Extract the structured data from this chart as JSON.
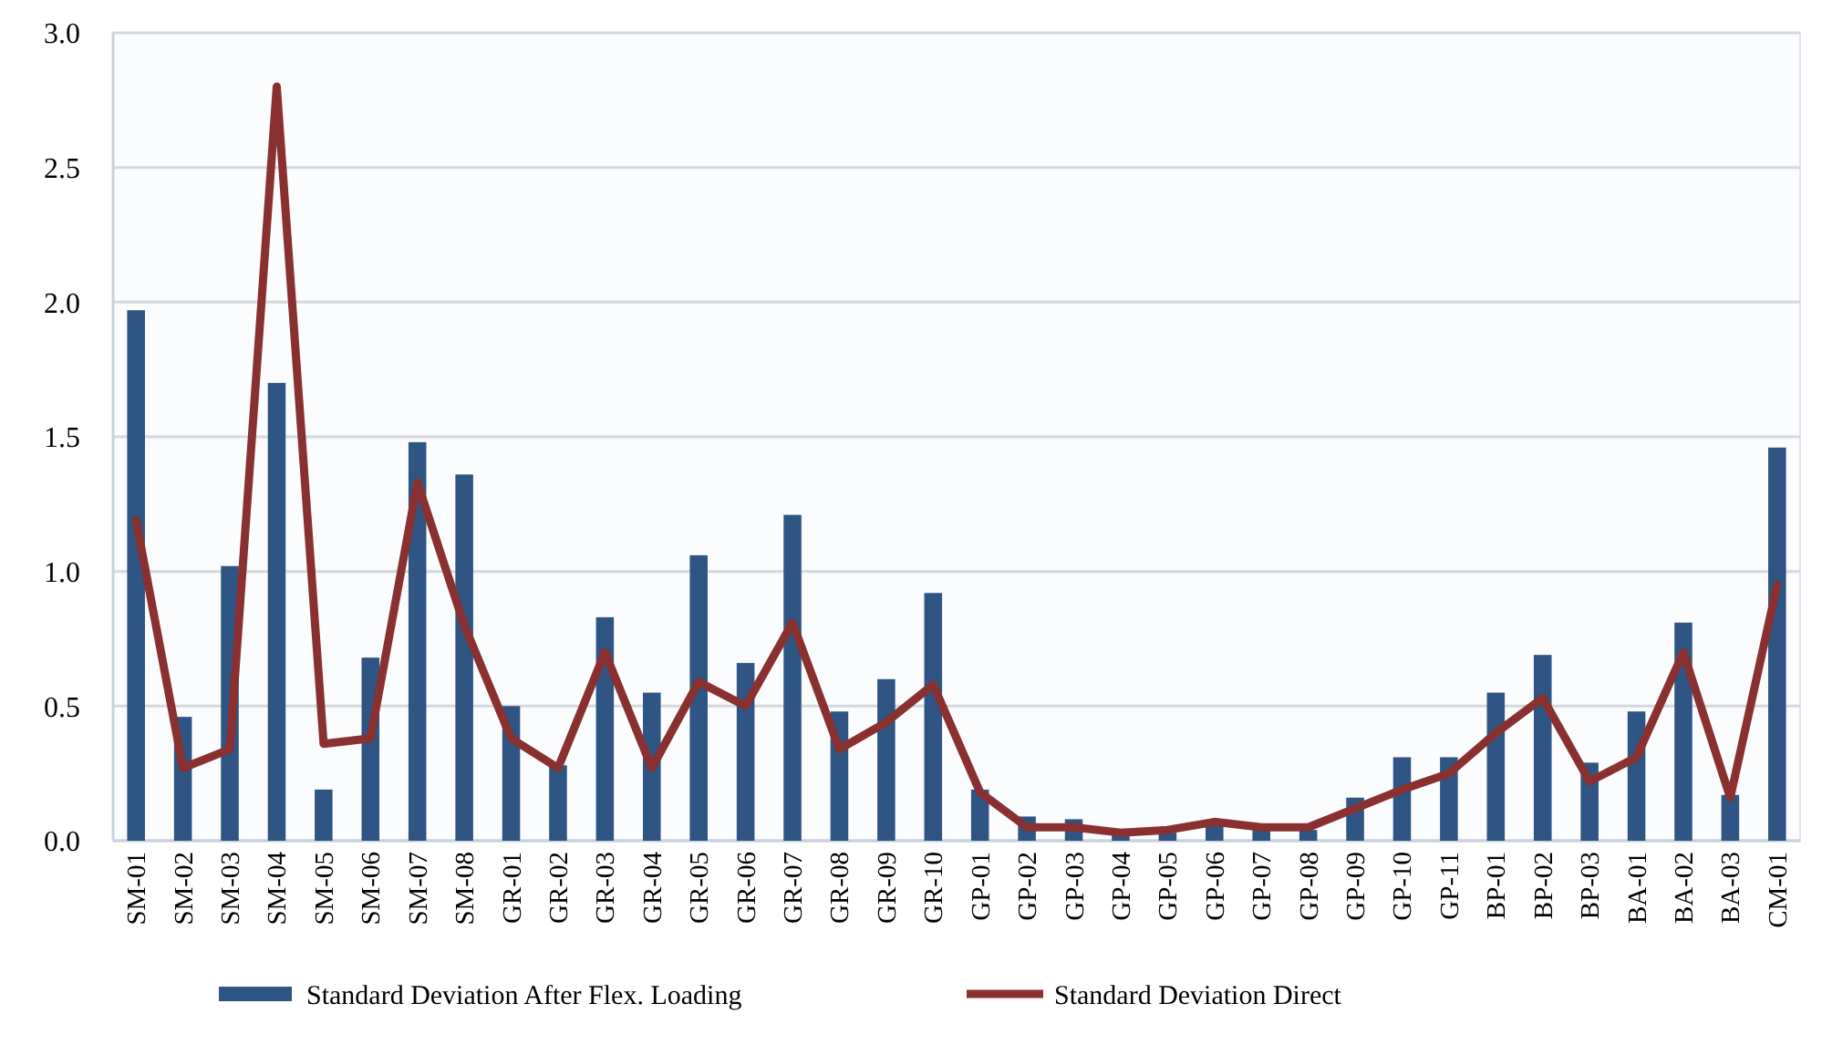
{
  "chart_data": {
    "type": "bar",
    "categories": [
      "SM-01",
      "SM-02",
      "SM-03",
      "SM-04",
      "SM-05",
      "SM-06",
      "SM-07",
      "SM-08",
      "GR-01",
      "GR-02",
      "GR-03",
      "GR-04",
      "GR-05",
      "GR-06",
      "GR-07",
      "GR-08",
      "GR-09",
      "GR-10",
      "GP-01",
      "GP-02",
      "GP-03",
      "GP-04",
      "GP-05",
      "GP-06",
      "GP-07",
      "GP-08",
      "GP-09",
      "GP-10",
      "GP-11",
      "BP-01",
      "BP-02",
      "BP-03",
      "BA-01",
      "BA-02",
      "BA-03",
      "CM-01"
    ],
    "series": [
      {
        "name": "Standard Deviation After Flex. Loading",
        "color": "#2e5583",
        "values": [
          1.97,
          0.46,
          1.02,
          1.7,
          0.19,
          0.68,
          1.48,
          1.36,
          0.5,
          0.28,
          0.83,
          0.55,
          1.06,
          0.66,
          1.21,
          0.48,
          0.6,
          0.92,
          0.19,
          0.09,
          0.08,
          0.03,
          0.03,
          0.06,
          0.04,
          0.04,
          0.16,
          0.31,
          0.31,
          0.55,
          0.69,
          0.29,
          0.48,
          0.81,
          0.17,
          1.46
        ]
      },
      {
        "name": "Standard Deviation Direct",
        "type": "line",
        "color": "#8b3030",
        "values": [
          1.19,
          0.27,
          0.34,
          2.8,
          0.36,
          0.38,
          1.33,
          0.8,
          0.38,
          0.27,
          0.7,
          0.27,
          0.59,
          0.5,
          0.81,
          0.34,
          0.44,
          0.58,
          0.18,
          0.05,
          0.05,
          0.03,
          0.04,
          0.07,
          0.05,
          0.05,
          0.12,
          0.19,
          0.25,
          0.4,
          0.53,
          0.22,
          0.31,
          0.7,
          0.16,
          0.95
        ]
      }
    ],
    "ylim": [
      0,
      3
    ],
    "yticks": [
      {
        "value": 0,
        "label": "0.0"
      },
      {
        "value": 0.5,
        "label": "0.5"
      },
      {
        "value": 1,
        "label": "1.0"
      },
      {
        "value": 1.5,
        "label": "1.5"
      },
      {
        "value": 2,
        "label": "2.0"
      },
      {
        "value": 2.5,
        "label": "2.5"
      },
      {
        "value": 3,
        "label": "3.0"
      }
    ],
    "grid": "y",
    "legend": "bottom",
    "marker": "none",
    "line_style": "solid"
  }
}
